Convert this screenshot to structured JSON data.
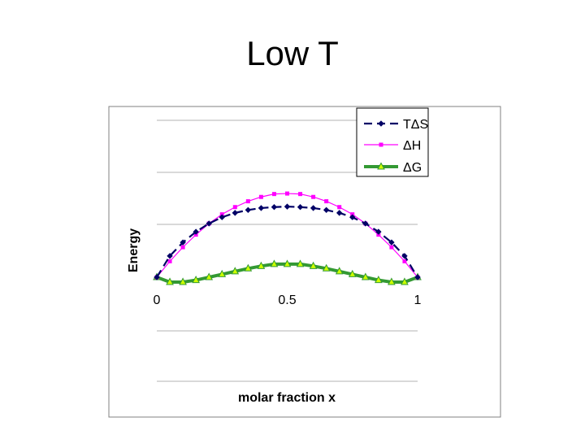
{
  "slide": {
    "title": "Low T"
  },
  "chart_data": {
    "type": "line",
    "title": "",
    "xlabel": "molar fraction x",
    "ylabel": "Energy",
    "xlim": [
      0,
      1
    ],
    "x_ticks": [
      "0",
      "0.5",
      "1"
    ],
    "grid": true,
    "legend_position": "top-right",
    "x": [
      0,
      0.05,
      0.1,
      0.15,
      0.2,
      0.25,
      0.3,
      0.35,
      0.4,
      0.45,
      0.5,
      0.55,
      0.6,
      0.65,
      0.7,
      0.75,
      0.8,
      0.85,
      0.9,
      0.95,
      1
    ],
    "series": [
      {
        "name": "TΔS",
        "color": "#000066",
        "style": "dashed",
        "marker": "diamond",
        "values": [
          0,
          0.44,
          0.72,
          0.94,
          1.11,
          1.24,
          1.33,
          1.39,
          1.43,
          1.45,
          1.46,
          1.45,
          1.43,
          1.39,
          1.33,
          1.24,
          1.11,
          0.94,
          0.72,
          0.44,
          0
        ]
      },
      {
        "name": "ΔH",
        "color": "#ff00ff",
        "style": "solid",
        "marker": "square",
        "values": [
          0,
          0.33,
          0.62,
          0.88,
          1.11,
          1.3,
          1.45,
          1.57,
          1.66,
          1.72,
          1.73,
          1.72,
          1.66,
          1.57,
          1.45,
          1.3,
          1.11,
          0.88,
          0.62,
          0.33,
          0
        ]
      },
      {
        "name": "ΔG",
        "color": "#339933",
        "marker_fill": "#ccff00",
        "style": "solid",
        "marker": "triangle",
        "values": [
          0,
          -0.1,
          -0.1,
          -0.06,
          0.0,
          0.06,
          0.12,
          0.18,
          0.23,
          0.27,
          0.27,
          0.27,
          0.23,
          0.18,
          0.12,
          0.06,
          0.0,
          -0.06,
          -0.1,
          -0.1,
          0
        ]
      }
    ]
  }
}
